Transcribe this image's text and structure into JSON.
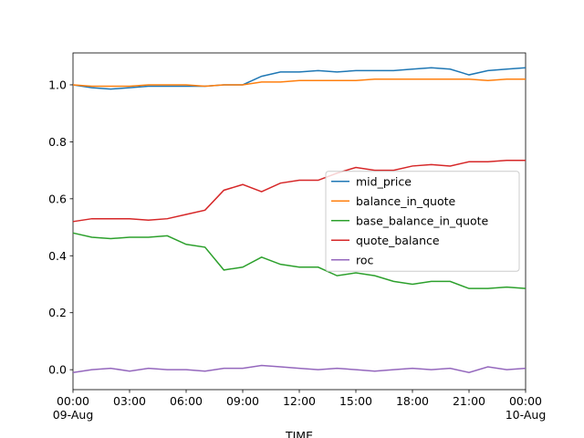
{
  "chart_data": {
    "type": "line",
    "xlabel": "TIME",
    "x": [
      0,
      1,
      2,
      3,
      4,
      5,
      6,
      7,
      8,
      9,
      10,
      11,
      12,
      13,
      14,
      15,
      16,
      17,
      18,
      19,
      20,
      21,
      22,
      23,
      24
    ],
    "xlim": [
      0,
      24
    ],
    "xticks": [
      {
        "value": 0,
        "label": "00:00\n09-Aug"
      },
      {
        "value": 3,
        "label": "03:00"
      },
      {
        "value": 6,
        "label": "06:00"
      },
      {
        "value": 9,
        "label": "09:00"
      },
      {
        "value": 12,
        "label": "12:00"
      },
      {
        "value": 15,
        "label": "15:00"
      },
      {
        "value": 18,
        "label": "18:00"
      },
      {
        "value": 21,
        "label": "21:00"
      },
      {
        "value": 24,
        "label": "00:00\n10-Aug"
      }
    ],
    "ylim": [
      -0.07,
      1.112
    ],
    "yticks": [
      {
        "value": 0,
        "label": "0.0"
      },
      {
        "value": 0.2,
        "label": "0.2"
      },
      {
        "value": 0.4,
        "label": "0.4"
      },
      {
        "value": 0.6,
        "label": "0.6"
      },
      {
        "value": 0.8,
        "label": "0.8"
      },
      {
        "value": 1,
        "label": "1.0"
      }
    ],
    "legend": "center right",
    "series": [
      {
        "name": "mid_price",
        "color": "#1f77b4",
        "values": [
          1.0,
          0.99,
          0.985,
          0.99,
          0.995,
          0.995,
          0.995,
          0.995,
          1.0,
          1.0,
          1.03,
          1.045,
          1.045,
          1.05,
          1.045,
          1.05,
          1.05,
          1.05,
          1.055,
          1.06,
          1.055,
          1.035,
          1.05,
          1.055,
          1.06
        ]
      },
      {
        "name": "balance_in_quote",
        "color": "#ff7f0e",
        "values": [
          1.0,
          0.995,
          0.995,
          0.995,
          1.0,
          1.0,
          1.0,
          0.995,
          1.0,
          1.0,
          1.01,
          1.01,
          1.015,
          1.015,
          1.015,
          1.015,
          1.02,
          1.02,
          1.02,
          1.02,
          1.02,
          1.02,
          1.015,
          1.02,
          1.02
        ]
      },
      {
        "name": "base_balance_in_quote",
        "color": "#2ca02c",
        "values": [
          0.48,
          0.465,
          0.46,
          0.465,
          0.465,
          0.47,
          0.44,
          0.43,
          0.35,
          0.36,
          0.395,
          0.37,
          0.36,
          0.36,
          0.33,
          0.34,
          0.33,
          0.31,
          0.3,
          0.31,
          0.31,
          0.285,
          0.285,
          0.29,
          0.285
        ]
      },
      {
        "name": "quote_balance",
        "color": "#d62728",
        "values": [
          0.52,
          0.53,
          0.53,
          0.53,
          0.525,
          0.53,
          0.545,
          0.56,
          0.63,
          0.65,
          0.625,
          0.655,
          0.665,
          0.665,
          0.69,
          0.71,
          0.7,
          0.7,
          0.715,
          0.72,
          0.715,
          0.73,
          0.73,
          0.735,
          0.735
        ]
      },
      {
        "name": "roc",
        "color": "#9467bd",
        "values": [
          -0.01,
          0,
          0.005,
          -0.005,
          0.005,
          0,
          0,
          -0.005,
          0.005,
          0.005,
          0.015,
          0.01,
          0.005,
          0,
          0.005,
          0,
          -0.005,
          0,
          0.005,
          0,
          0.005,
          -0.01,
          0.01,
          0,
          0.005
        ]
      }
    ]
  }
}
